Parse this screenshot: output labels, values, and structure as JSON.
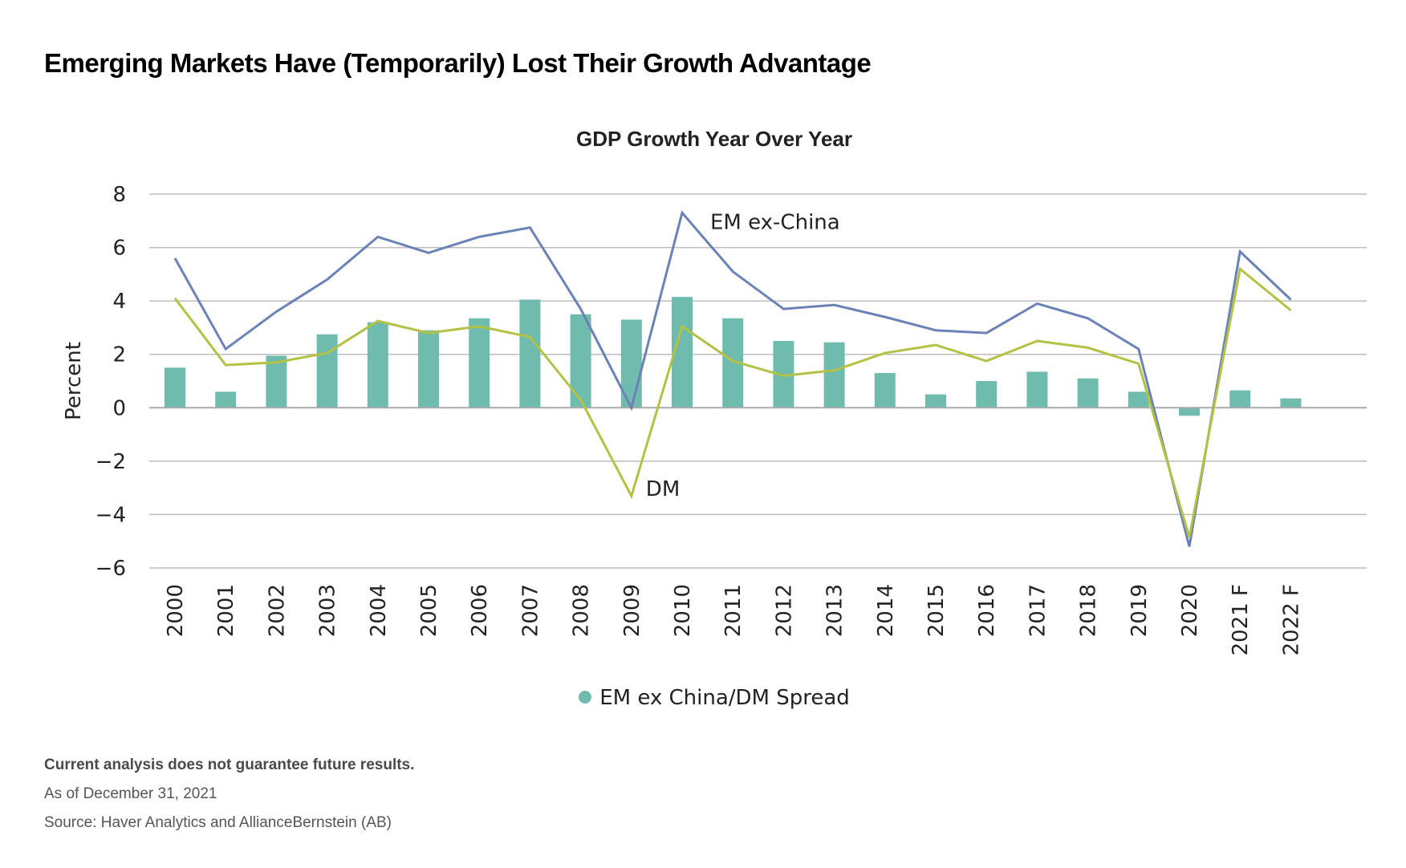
{
  "page_title": "Emerging Markets Have (Temporarily) Lost Their Growth Advantage",
  "footer": {
    "disclaimer": "Current analysis does not guarantee future results.",
    "as_of": "As of December 31, 2021",
    "source": "Source: Haver Analytics and AllianceBernstein (AB)"
  },
  "colors": {
    "bars": "#6fbcae",
    "em_ex_china": "#6a82b6",
    "dm": "#b3c244",
    "grid": "#bdbdbd"
  },
  "chart_data": {
    "type": "bar",
    "title": "GDP Growth Year Over Year",
    "xlabel": "",
    "ylabel": "Percent",
    "ylim": [
      -6,
      8
    ],
    "yticks": [
      8,
      6,
      4,
      2,
      0,
      -2,
      -4,
      -6
    ],
    "ytick_labels": [
      "8",
      "6",
      "4",
      "2",
      "0",
      "−2",
      "−4",
      "−6"
    ],
    "grid": true,
    "legend": {
      "position": "bottom",
      "entries": [
        "EM ex China/DM Spread"
      ]
    },
    "categories": [
      "2000",
      "2001",
      "2002",
      "2003",
      "2004",
      "2005",
      "2006",
      "2007",
      "2008",
      "2009",
      "2010",
      "2011",
      "2012",
      "2013",
      "2014",
      "2015",
      "2016",
      "2017",
      "2018",
      "2019",
      "2020",
      "2021 F",
      "2022 F"
    ],
    "series": [
      {
        "name": "EM ex China/DM Spread",
        "type": "bar",
        "values": [
          1.5,
          0.6,
          1.95,
          2.75,
          3.2,
          2.9,
          3.35,
          4.05,
          3.5,
          3.3,
          4.15,
          3.35,
          2.5,
          2.45,
          1.3,
          0.5,
          1.0,
          1.35,
          1.1,
          0.6,
          -0.3,
          0.65,
          0.35
        ]
      },
      {
        "name": "EM ex-China",
        "type": "line",
        "values": [
          5.6,
          2.2,
          3.6,
          4.8,
          6.4,
          5.8,
          6.4,
          6.75,
          3.7,
          0.0,
          7.3,
          5.1,
          3.7,
          3.85,
          3.4,
          2.9,
          2.8,
          3.9,
          3.35,
          2.2,
          -5.2,
          5.85,
          4.05
        ]
      },
      {
        "name": "DM",
        "type": "line",
        "values": [
          4.1,
          1.6,
          1.7,
          2.05,
          3.25,
          2.8,
          3.05,
          2.65,
          0.3,
          -3.3,
          3.05,
          1.75,
          1.2,
          1.4,
          2.05,
          2.35,
          1.75,
          2.5,
          2.25,
          1.65,
          -4.85,
          5.2,
          3.65
        ]
      }
    ],
    "annotations": [
      {
        "text": "EM ex-China",
        "series": "EM ex-China",
        "category": "2010"
      },
      {
        "text": "DM",
        "series": "DM",
        "category": "2009"
      }
    ]
  }
}
